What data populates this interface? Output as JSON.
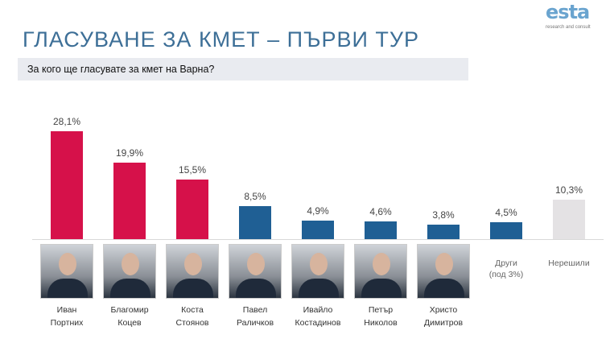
{
  "header": {
    "title": "ГЛАСУВАНЕ ЗА КМЕТ – ПЪРВИ ТУР",
    "question": "За кого ще гласувате за кмет на Варна?"
  },
  "logo": {
    "letters": "esta",
    "subtitle": "research and consult"
  },
  "colors": {
    "leading": "#d6114a",
    "other": "#1f5f94",
    "undecided": "#e4e2e4"
  },
  "chart_data": {
    "type": "bar",
    "title": "",
    "categories": [
      {
        "line1": "Иван",
        "line2": "Портних",
        "photo": true
      },
      {
        "line1": "Благомир",
        "line2": "Коцев",
        "photo": true
      },
      {
        "line1": "Коста",
        "line2": "Стоянов",
        "photo": true
      },
      {
        "line1": "Павел",
        "line2": "Раличков",
        "photo": true
      },
      {
        "line1": "Ивайло",
        "line2": "Костадинов",
        "photo": true
      },
      {
        "line1": "Петър",
        "line2": "Николов",
        "photo": true
      },
      {
        "line1": "Христо",
        "line2": "Димитров",
        "photo": true
      },
      {
        "line1": "Други",
        "line2": "(под 3%)",
        "photo": false
      },
      {
        "line1": "Нерешили",
        "line2": "",
        "photo": false
      }
    ],
    "values": [
      28.1,
      19.9,
      15.5,
      8.5,
      4.9,
      4.6,
      3.8,
      4.5,
      10.3
    ],
    "value_labels": [
      "28,1%",
      "19,9%",
      "15,5%",
      "8,5%",
      "4,9%",
      "4,6%",
      "3,8%",
      "4,5%",
      "10,3%"
    ],
    "bar_colors": [
      "leading",
      "leading",
      "leading",
      "other",
      "other",
      "other",
      "other",
      "other",
      "undecided"
    ],
    "unit": "%",
    "grid": false,
    "legend": "none"
  }
}
